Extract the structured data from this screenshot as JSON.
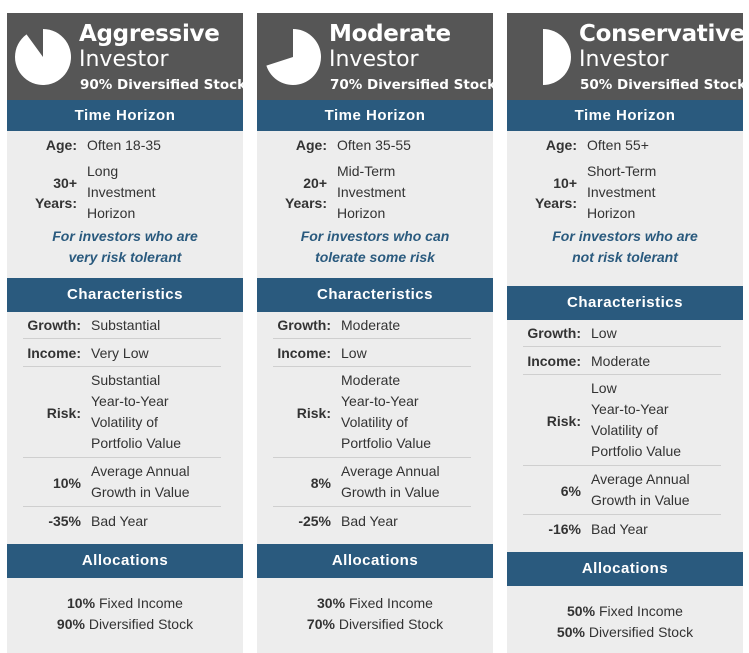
{
  "colors": {
    "header_bg": "#565656",
    "section_bar": "#2a5a7e",
    "card_bg": "#ededed",
    "note_text": "#2a5a7e"
  },
  "cards": [
    {
      "title_line1": "Aggressive",
      "title_line2": "Investor",
      "subtitle": "90% Diversified Stock",
      "stock_share": 0.9,
      "icon": "pie-chart-icon",
      "time_horizon_label": "Time Horizon",
      "age_label": "Age:",
      "age_value": "Often 18-35",
      "years_num": "30+",
      "years_label": "Years:",
      "horizon_lines": [
        "Long",
        "Investment",
        "Horizon"
      ],
      "note_lines": [
        "For investors who are",
        "very risk tolerant"
      ],
      "characteristics_label": "Characteristics",
      "growth_label": "Growth:",
      "growth_value": "Substantial",
      "income_label": "Income:",
      "income_value": "Very Low",
      "risk_label": "Risk:",
      "risk_lines": [
        "Substantial",
        "Year-to-Year",
        "Volatility of",
        "Portfolio Value"
      ],
      "avg_pct": "10%",
      "avg_lines": [
        "Average Annual",
        "Growth in Value"
      ],
      "bad_pct": "-35%",
      "bad_label": "Bad Year",
      "allocations_label": "Allocations",
      "alloc1_pct": "10%",
      "alloc1_label": "Fixed Income",
      "alloc2_pct": "90%",
      "alloc2_label": "Diversified Stock"
    },
    {
      "title_line1": "Moderate",
      "title_line2": "Investor",
      "subtitle": "70% Diversified Stock",
      "stock_share": 0.7,
      "icon": "pie-chart-icon",
      "time_horizon_label": "Time Horizon",
      "age_label": "Age:",
      "age_value": "Often 35-55",
      "years_num": "20+",
      "years_label": "Years:",
      "horizon_lines": [
        "Mid-Term",
        "Investment",
        "Horizon"
      ],
      "note_lines": [
        "For investors who can",
        "tolerate some risk"
      ],
      "characteristics_label": "Characteristics",
      "growth_label": "Growth:",
      "growth_value": "Moderate",
      "income_label": "Income:",
      "income_value": "Low",
      "risk_label": "Risk:",
      "risk_lines": [
        "Moderate",
        "Year-to-Year",
        "Volatility of",
        "Portfolio Value"
      ],
      "avg_pct": "8%",
      "avg_lines": [
        "Average Annual",
        "Growth in Value"
      ],
      "bad_pct": "-25%",
      "bad_label": "Bad Year",
      "allocations_label": "Allocations",
      "alloc1_pct": "30%",
      "alloc1_label": "Fixed Income",
      "alloc2_pct": "70%",
      "alloc2_label": "Diversified Stock"
    },
    {
      "title_line1": "Conservative",
      "title_line2": "Investor",
      "subtitle": "50% Diversified Stock",
      "stock_share": 0.5,
      "icon": "pie-chart-icon",
      "time_horizon_label": "Time Horizon",
      "age_label": "Age:",
      "age_value": "Often 55+",
      "years_num": "10+",
      "years_label": "Years:",
      "horizon_lines": [
        "Short-Term",
        "Investment",
        "Horizon"
      ],
      "note_lines": [
        "For investors who are",
        "not risk tolerant"
      ],
      "characteristics_label": "Characteristics",
      "growth_label": "Growth:",
      "growth_value": "Low",
      "income_label": "Income:",
      "income_value": "Moderate",
      "risk_label": "Risk:",
      "risk_lines": [
        "Low",
        "Year-to-Year",
        "Volatility of",
        "Portfolio Value"
      ],
      "avg_pct": "6%",
      "avg_lines": [
        "Average Annual",
        "Growth in Value"
      ],
      "bad_pct": "-16%",
      "bad_label": "Bad Year",
      "allocations_label": "Allocations",
      "alloc1_pct": "50%",
      "alloc1_label": "Fixed Income",
      "alloc2_pct": "50%",
      "alloc2_label": "Diversified Stock"
    }
  ]
}
